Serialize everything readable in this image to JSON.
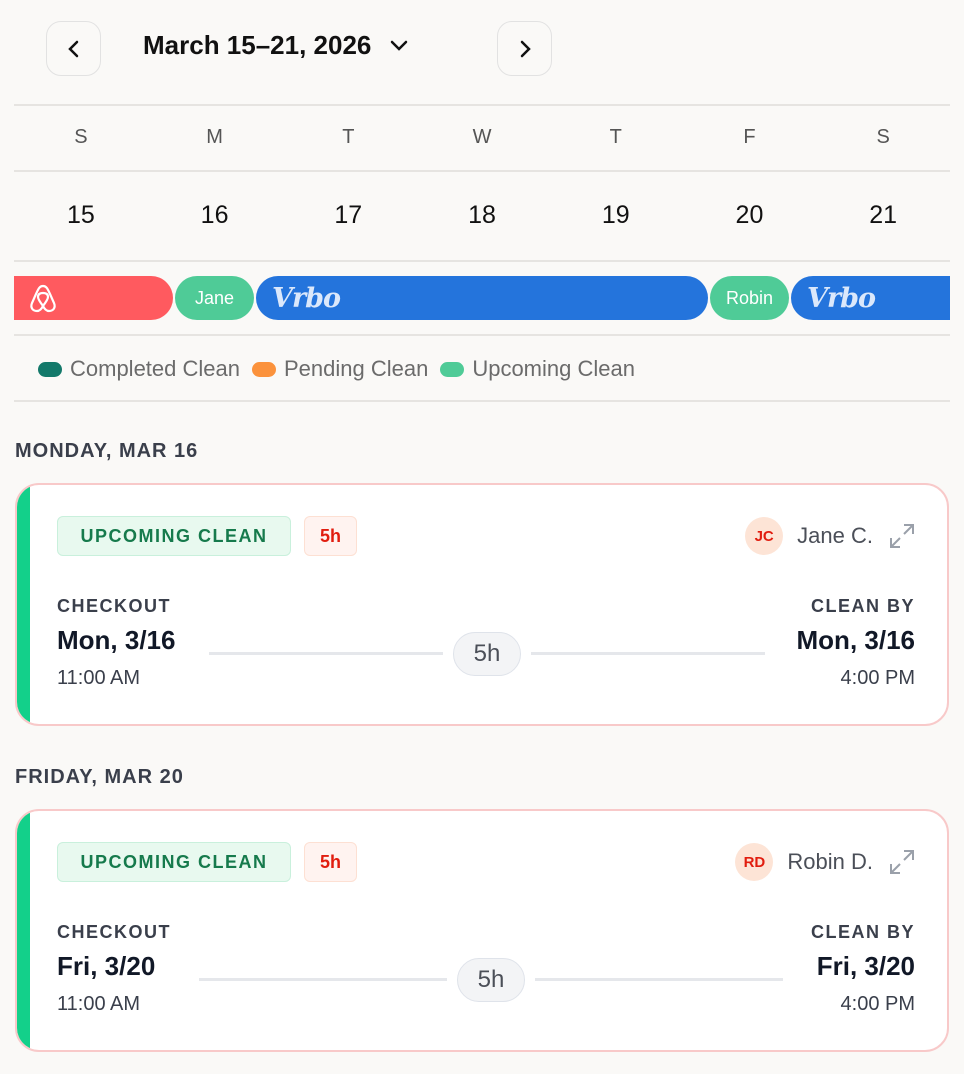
{
  "header": {
    "title": "March 15–21, 2026",
    "prev": "previous-week",
    "next": "next-week"
  },
  "week": {
    "letters": [
      "S",
      "M",
      "T",
      "W",
      "T",
      "F",
      "S"
    ],
    "dates": [
      "15",
      "16",
      "17",
      "18",
      "19",
      "20",
      "21"
    ]
  },
  "bookings": [
    {
      "type": "airbnb"
    },
    {
      "label": "Jane"
    },
    {
      "type": "vrbo",
      "label": "Vrbo"
    },
    {
      "label": "Robin"
    },
    {
      "type": "vrbo",
      "label": "Vrbo"
    }
  ],
  "legend": [
    {
      "label": "Completed Clean",
      "color": "#13796a"
    },
    {
      "label": "Pending Clean",
      "color": "#fb923c"
    },
    {
      "label": "Upcoming Clean",
      "color": "#4fcb97"
    }
  ],
  "sections": [
    {
      "heading": "MONDAY, MAR 16",
      "status": "UPCOMING CLEAN",
      "hours": "5h",
      "initials": "JC",
      "name": "Jane C.",
      "checkout_label": "CHECKOUT",
      "checkout_date": "Mon, 3/16",
      "checkout_time": "11:00 AM",
      "duration": "5h",
      "cleanby_label": "CLEAN BY",
      "cleanby_date": "Mon, 3/16",
      "cleanby_time": "4:00 PM"
    },
    {
      "heading": "FRIDAY, MAR 20",
      "status": "UPCOMING CLEAN",
      "hours": "5h",
      "initials": "RD",
      "name": "Robin D.",
      "checkout_label": "CHECKOUT",
      "checkout_date": "Fri, 3/20",
      "checkout_time": "11:00 AM",
      "duration": "5h",
      "cleanby_label": "CLEAN BY",
      "cleanby_date": "Fri, 3/20",
      "cleanby_time": "4:00 PM"
    }
  ]
}
